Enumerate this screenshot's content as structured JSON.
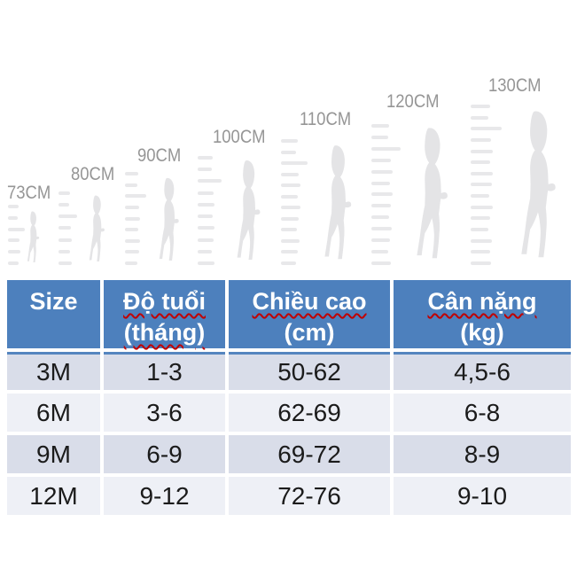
{
  "growth_chart": {
    "height_labels": [
      "73CM",
      "80CM",
      "90CM",
      "100CM",
      "110CM",
      "120CM",
      "130CM"
    ],
    "heights_cm": [
      73,
      80,
      90,
      100,
      110,
      120,
      130
    ],
    "silhouette_color": "#e4e4e6",
    "ruler_color": "#e8e8ea",
    "label_color": "#969696"
  },
  "size_table": {
    "colors": {
      "header_bg": "#4d80bd",
      "header_text": "#ffffff",
      "row_odd_bg": "#d9dde9",
      "row_even_bg": "#eef0f6",
      "accent_line": "#5585bf",
      "spellcheck_underline": "#c00000"
    },
    "header": {
      "col0": {
        "line1": "Size",
        "line2": ""
      },
      "col1": {
        "line1": "Độ tuổi",
        "line2": "(tháng)"
      },
      "col2": {
        "line1": "Chiều cao",
        "line2": "(cm)"
      },
      "col3": {
        "line1": "Cân nặng",
        "line2": "(kg)"
      }
    },
    "rows": [
      {
        "size": "3M",
        "age": "1-3",
        "height": "50-62",
        "weight": "4,5-6"
      },
      {
        "size": "6M",
        "age": "3-6",
        "height": "62-69",
        "weight": "6-8"
      },
      {
        "size": "9M",
        "age": "6-9",
        "height": "69-72",
        "weight": "8-9"
      },
      {
        "size": "12M",
        "age": "9-12",
        "height": "72-76",
        "weight": "9-10"
      }
    ]
  }
}
